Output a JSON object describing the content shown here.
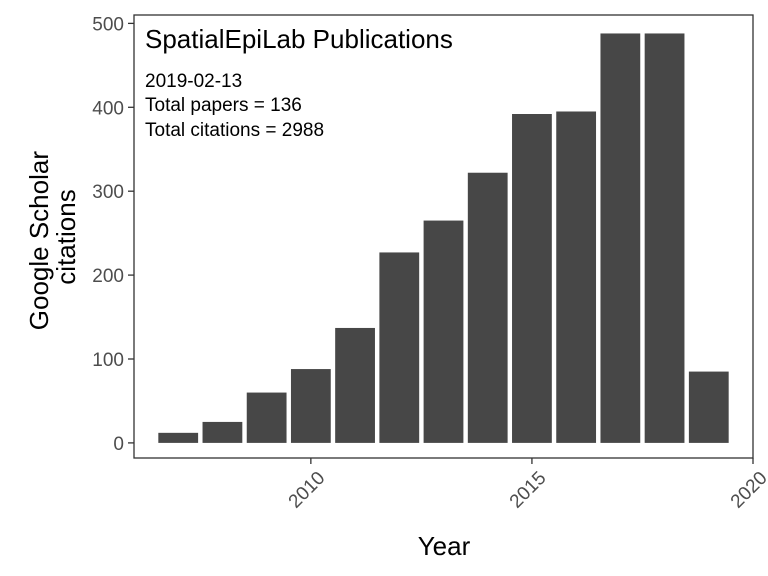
{
  "chart_data": {
    "type": "bar",
    "title": "",
    "xlabel": "Year",
    "ylabel_lines": [
      "Google Scholar",
      "citations"
    ],
    "x": [
      2007,
      2008,
      2009,
      2010,
      2011,
      2012,
      2013,
      2014,
      2015,
      2016,
      2017,
      2018,
      2019
    ],
    "values": [
      12,
      25,
      60,
      88,
      137,
      227,
      265,
      322,
      392,
      395,
      488,
      488,
      85
    ],
    "xlim": [
      2006.0,
      2020.0
    ],
    "ylim": [
      -18,
      510
    ],
    "xticks": [
      2010,
      2015,
      2020
    ],
    "yticks": [
      0,
      100,
      200,
      300,
      400,
      500
    ],
    "grid": false,
    "legend": "none",
    "colors": {
      "bar": "#474747",
      "frame": "#333333",
      "tick_text": "#4d4d4d"
    },
    "annotations": {
      "title": "SpatialEpiLab Publications",
      "date": "2019-02-13",
      "papers": "Total papers =  136",
      "citations": "Total citations =  2988"
    }
  }
}
